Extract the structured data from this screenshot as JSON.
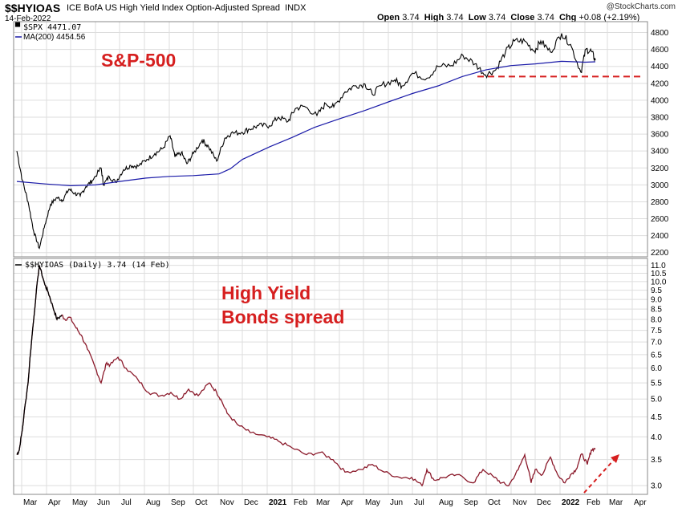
{
  "header": {
    "symbol": "$$HYIOAS",
    "description": "ICE BofA US High Yield Index Option-Adjusted Spread",
    "exchange": "INDX",
    "date": "14-Feb-2022",
    "open_label": "Open",
    "open": "3.74",
    "high_label": "High",
    "high": "3.74",
    "low_label": "Low",
    "low": "3.74",
    "close_label": "Close",
    "close": "3.74",
    "chg_label": "Chg",
    "chg": "+0.08 (+2.19%)",
    "watermark": "@StockCharts.com"
  },
  "colors": {
    "price": "#000000",
    "ma": "#1a1aa8",
    "spread": "#8b1a2b",
    "annotation": "#d61f1f",
    "grid": "#dddddd"
  },
  "chart_data": [
    {
      "type": "line",
      "annotation": "S&P-500",
      "legend": [
        "$SPX 4471.07",
        "MA(200) 4454.56"
      ],
      "ylim": [
        2150,
        4900
      ],
      "yticks": [
        "2200",
        "2400",
        "2600",
        "2800",
        "3000",
        "3200",
        "3400",
        "3600",
        "3800",
        "4000",
        "4200",
        "4400",
        "4600",
        "4800"
      ],
      "grid": true,
      "series": [
        {
          "name": "$SPX",
          "x": [
            "2020-02-24",
            "2020-03-02",
            "2020-03-09",
            "2020-03-16",
            "2020-03-23",
            "2020-03-30",
            "2020-04-06",
            "2020-04-14",
            "2020-04-21",
            "2020-04-29",
            "2020-05-06",
            "2020-05-13",
            "2020-05-20",
            "2020-05-28",
            "2020-06-08",
            "2020-06-11",
            "2020-06-18",
            "2020-06-26",
            "2020-07-06",
            "2020-07-15",
            "2020-07-24",
            "2020-08-04",
            "2020-08-14",
            "2020-08-24",
            "2020-09-02",
            "2020-09-08",
            "2020-09-16",
            "2020-09-23",
            "2020-10-01",
            "2020-10-12",
            "2020-10-20",
            "2020-10-30",
            "2020-11-09",
            "2020-11-17",
            "2020-11-30",
            "2020-12-10",
            "2020-12-21",
            "2021-01-04",
            "2021-01-15",
            "2021-01-27",
            "2021-02-05",
            "2021-02-16",
            "2021-03-04",
            "2021-03-15",
            "2021-03-25",
            "2021-04-08",
            "2021-04-20",
            "2021-05-03",
            "2021-05-12",
            "2021-05-24",
            "2021-06-09",
            "2021-06-18",
            "2021-07-01",
            "2021-07-19",
            "2021-08-02",
            "2021-08-19",
            "2021-09-02",
            "2021-09-17",
            "2021-09-30",
            "2021-10-13",
            "2021-10-25",
            "2021-11-05",
            "2021-11-18",
            "2021-11-30",
            "2021-12-08",
            "2021-12-20",
            "2022-01-03",
            "2022-01-14",
            "2022-01-27",
            "2022-02-02",
            "2022-02-09",
            "2022-02-14"
          ],
          "values": [
            3400,
            3050,
            2800,
            2450,
            2250,
            2530,
            2770,
            2850,
            2820,
            2950,
            2900,
            2870,
            2980,
            3050,
            3200,
            3000,
            3100,
            3030,
            3180,
            3230,
            3220,
            3300,
            3370,
            3430,
            3580,
            3330,
            3380,
            3250,
            3370,
            3530,
            3450,
            3280,
            3550,
            3610,
            3620,
            3660,
            3700,
            3700,
            3800,
            3750,
            3900,
            3930,
            3820,
            3960,
            3920,
            4100,
            4170,
            4190,
            4070,
            4180,
            4240,
            4170,
            4320,
            4260,
            4400,
            4410,
            4530,
            4430,
            4300,
            4360,
            4570,
            4700,
            4700,
            4580,
            4700,
            4570,
            4790,
            4660,
            4330,
            4600,
            4580,
            4471.07
          ]
        },
        {
          "name": "MA(200)",
          "x": [
            "2020-02-24",
            "2020-04-01",
            "2020-05-01",
            "2020-06-01",
            "2020-07-01",
            "2020-08-03",
            "2020-09-01",
            "2020-10-01",
            "2020-11-02",
            "2020-11-16",
            "2020-12-01",
            "2021-01-04",
            "2021-02-01",
            "2021-03-01",
            "2021-04-01",
            "2021-05-03",
            "2021-06-01",
            "2021-07-01",
            "2021-08-02",
            "2021-09-01",
            "2021-10-01",
            "2021-11-01",
            "2021-12-01",
            "2022-01-03",
            "2022-02-01",
            "2022-02-14"
          ],
          "values": [
            3040,
            3010,
            2990,
            3000,
            3040,
            3080,
            3100,
            3110,
            3130,
            3190,
            3300,
            3450,
            3560,
            3680,
            3780,
            3880,
            3980,
            4080,
            4170,
            4280,
            4360,
            4410,
            4430,
            4460,
            4450,
            4454.56
          ]
        }
      ],
      "support_level": 4280
    },
    {
      "type": "line",
      "annotation": [
        "High Yield",
        "Bonds spread"
      ],
      "legend": [
        "$$HYIOAS (Daily) 3.74 (14 Feb)"
      ],
      "scale": "log",
      "ylim": [
        2.85,
        11.3
      ],
      "yticks": [
        "3.0",
        "3.5",
        "4.0",
        "4.5",
        "5.0",
        "5.5",
        "6.0",
        "6.5",
        "7.0",
        "7.5",
        "8.0",
        "8.5",
        "9.0",
        "9.5",
        "10.0",
        "10.5",
        "11.0"
      ],
      "grid": true,
      "series": [
        {
          "name": "$$HYIOAS",
          "x": [
            "2020-02-24",
            "2020-02-27",
            "2020-03-02",
            "2020-03-09",
            "2020-03-16",
            "2020-03-23",
            "2020-03-30",
            "2020-04-03",
            "2020-04-09",
            "2020-04-14",
            "2020-04-20",
            "2020-04-24",
            "2020-04-30",
            "2020-05-08",
            "2020-05-14",
            "2020-05-22",
            "2020-06-01",
            "2020-06-08",
            "2020-06-15",
            "2020-06-19",
            "2020-06-29",
            "2020-07-09",
            "2020-07-24",
            "2020-08-06",
            "2020-08-21",
            "2020-09-03",
            "2020-09-14",
            "2020-09-25",
            "2020-10-07",
            "2020-10-21",
            "2020-10-30",
            "2020-11-04",
            "2020-11-12",
            "2020-11-25",
            "2020-12-11",
            "2021-01-01",
            "2021-01-15",
            "2021-02-01",
            "2021-02-19",
            "2021-03-08",
            "2021-03-24",
            "2021-04-08",
            "2021-04-28",
            "2021-05-12",
            "2021-05-27",
            "2021-06-15",
            "2021-06-30",
            "2021-07-13",
            "2021-07-19",
            "2021-07-28",
            "2021-08-09",
            "2021-08-25",
            "2021-09-15",
            "2021-09-27",
            "2021-10-11",
            "2021-10-20",
            "2021-10-29",
            "2021-11-10",
            "2021-11-18",
            "2021-11-26",
            "2021-12-01",
            "2021-12-10",
            "2021-12-20",
            "2021-12-29",
            "2022-01-07",
            "2022-01-14",
            "2022-01-21",
            "2022-01-28",
            "2022-02-04",
            "2022-02-09",
            "2022-02-14"
          ],
          "values": [
            3.6,
            3.7,
            4.2,
            5.5,
            8.0,
            11.0,
            9.8,
            9.4,
            8.6,
            8.0,
            8.2,
            8.0,
            8.1,
            7.6,
            7.3,
            6.7,
            6.0,
            5.5,
            6.2,
            6.1,
            6.4,
            6.0,
            5.6,
            5.2,
            5.1,
            5.2,
            5.0,
            5.3,
            5.1,
            5.5,
            5.2,
            5.0,
            4.6,
            4.3,
            4.1,
            4.0,
            3.9,
            3.75,
            3.6,
            3.65,
            3.5,
            3.25,
            3.3,
            3.4,
            3.25,
            3.15,
            3.15,
            3.0,
            3.3,
            3.1,
            3.15,
            3.2,
            3.05,
            3.3,
            3.15,
            3.05,
            3.0,
            3.3,
            3.6,
            3.05,
            3.3,
            3.2,
            3.55,
            3.2,
            3.05,
            3.2,
            3.3,
            3.62,
            3.4,
            3.7,
            3.74
          ]
        }
      ]
    }
  ],
  "x_axis": {
    "ticks": [
      "Mar",
      "Apr",
      "May",
      "Jun",
      "Jul",
      "Aug",
      "Sep",
      "Oct",
      "Nov",
      "Dec",
      "2021",
      "Feb",
      "Mar",
      "Apr",
      "May",
      "Jun",
      "Jul",
      "Aug",
      "Sep",
      "Oct",
      "Nov",
      "Dec",
      "2022",
      "Feb",
      "Mar",
      "Apr"
    ],
    "tick_dates": [
      "2020-03-01",
      "2020-04-01",
      "2020-05-01",
      "2020-06-01",
      "2020-07-01",
      "2020-08-01",
      "2020-09-01",
      "2020-10-01",
      "2020-11-01",
      "2020-12-01",
      "2021-01-01",
      "2021-02-01",
      "2021-03-01",
      "2021-04-01",
      "2021-05-01",
      "2021-06-01",
      "2021-07-01",
      "2021-08-01",
      "2021-09-01",
      "2021-10-01",
      "2021-11-01",
      "2021-12-01",
      "2022-01-01",
      "2022-02-01",
      "2022-03-01",
      "2022-04-01"
    ],
    "range": [
      "2020-02-20",
      "2022-04-20"
    ]
  }
}
